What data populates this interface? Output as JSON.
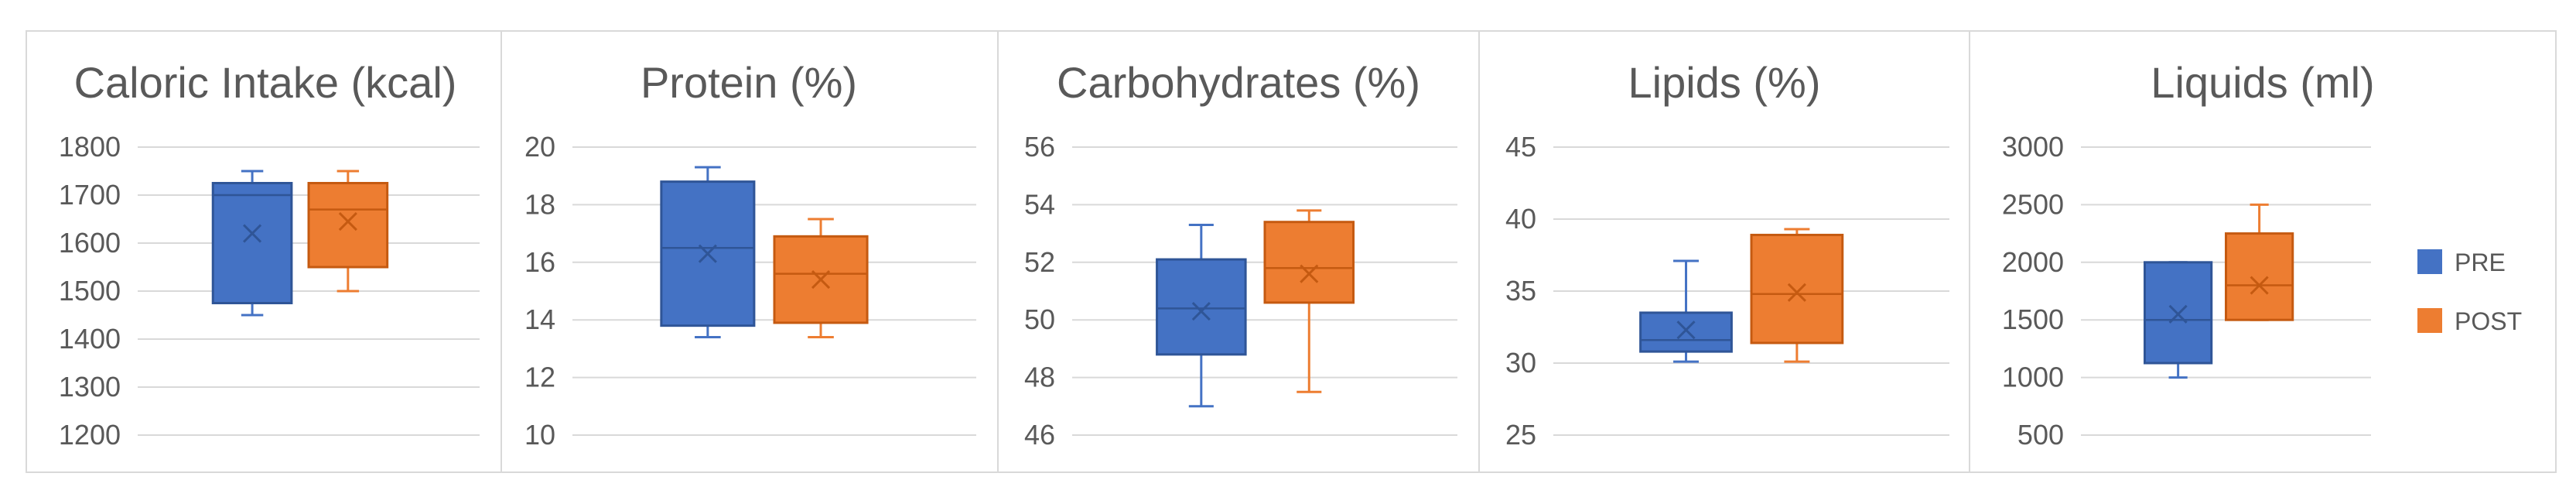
{
  "colors": {
    "PRE": "#4472C4",
    "PRE_dark": "#2F5597",
    "POST": "#ED7D31",
    "POST_dark": "#C55A11",
    "grid": "#d9d9d9",
    "text": "#595959"
  },
  "legend": [
    {
      "name": "PRE",
      "color": "#4472C4"
    },
    {
      "name": "POST",
      "color": "#ED7D31"
    }
  ],
  "chart_data": [
    {
      "type": "boxplot",
      "title": "Caloric Intake (kcal)",
      "ylim": [
        1200,
        1800
      ],
      "yticks": [
        1800,
        1700,
        1600,
        1500,
        1400,
        1300,
        1200
      ],
      "grid": true,
      "series": [
        {
          "name": "PRE",
          "min": 1450,
          "q1": 1475,
          "median": 1700,
          "q3": 1725,
          "max": 1750,
          "mean": 1620
        },
        {
          "name": "POST",
          "min": 1500,
          "q1": 1550,
          "median": 1670,
          "q3": 1725,
          "max": 1750,
          "mean": 1645
        }
      ]
    },
    {
      "type": "boxplot",
      "title": "Protein (%)",
      "ylim": [
        10,
        20
      ],
      "yticks": [
        20,
        18,
        16,
        14,
        12,
        10
      ],
      "grid": true,
      "series": [
        {
          "name": "PRE",
          "min": 13.4,
          "q1": 13.8,
          "median": 16.5,
          "q3": 18.8,
          "max": 19.3,
          "mean": 16.3
        },
        {
          "name": "POST",
          "min": 13.4,
          "q1": 13.9,
          "median": 15.6,
          "q3": 16.9,
          "max": 17.5,
          "mean": 15.4
        }
      ]
    },
    {
      "type": "boxplot",
      "title": "Carbohydrates (%)",
      "ylim": [
        46,
        56
      ],
      "yticks": [
        56,
        54,
        52,
        50,
        48,
        46
      ],
      "grid": true,
      "series": [
        {
          "name": "PRE",
          "min": 47.0,
          "q1": 48.8,
          "median": 50.4,
          "q3": 52.1,
          "max": 53.3,
          "mean": 50.3
        },
        {
          "name": "POST",
          "min": 47.5,
          "q1": 50.6,
          "median": 51.8,
          "q3": 53.4,
          "max": 53.8,
          "mean": 51.6
        }
      ]
    },
    {
      "type": "boxplot",
      "title": "Lipids (%)",
      "ylim": [
        25,
        45
      ],
      "yticks": [
        45,
        40,
        35,
        30,
        25
      ],
      "grid": true,
      "series": [
        {
          "name": "PRE",
          "min": 30.1,
          "q1": 30.8,
          "median": 31.6,
          "q3": 33.5,
          "max": 37.1,
          "mean": 32.3
        },
        {
          "name": "POST",
          "min": 30.1,
          "q1": 31.4,
          "median": 34.8,
          "q3": 38.9,
          "max": 39.3,
          "mean": 34.9
        }
      ]
    },
    {
      "type": "boxplot",
      "title": "Liquids (ml)",
      "ylim": [
        500,
        3000
      ],
      "yticks": [
        3000,
        2500,
        2000,
        1500,
        1000,
        500
      ],
      "grid": true,
      "legend": "right",
      "series": [
        {
          "name": "PRE",
          "min": 1000,
          "q1": 1125,
          "median": 1500,
          "q3": 2000,
          "max": 2000,
          "mean": 1550
        },
        {
          "name": "POST",
          "min": 1500,
          "q1": 1500,
          "median": 1800,
          "q3": 2250,
          "max": 2500,
          "mean": 1800
        }
      ]
    }
  ]
}
